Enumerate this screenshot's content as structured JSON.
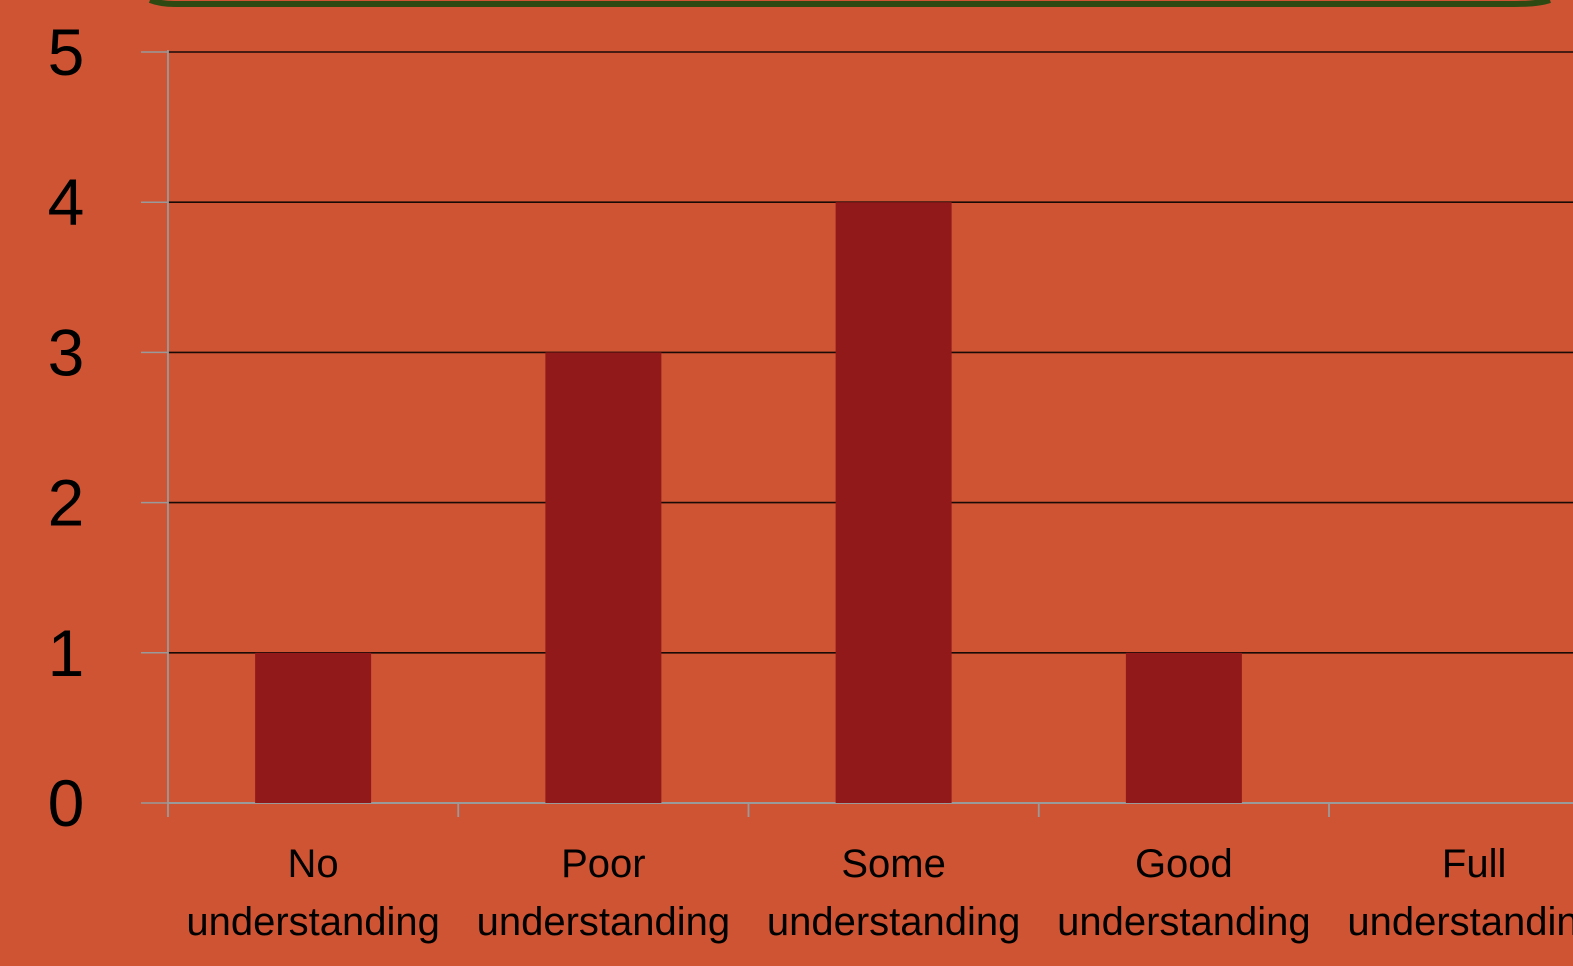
{
  "chart_data": {
    "type": "bar",
    "categories": [
      [
        "No",
        "understanding"
      ],
      [
        "Poor",
        "understanding"
      ],
      [
        "Some",
        "understanding"
      ],
      [
        "Good",
        "understanding"
      ],
      [
        "Full",
        "understanding"
      ]
    ],
    "values": [
      1,
      3,
      4,
      1,
      0
    ],
    "title": "",
    "xlabel": "",
    "ylabel": "",
    "ylim": [
      0,
      5
    ],
    "yticks": [
      "0",
      "1",
      "2",
      "3",
      "4",
      "5"
    ],
    "grid": true,
    "legend": "none"
  },
  "colors": {
    "background": "#CF5434",
    "bar": "#921919",
    "gridline": "#1a0a06",
    "axis": "#9a9a9a",
    "frame_top": "#2E4A12"
  }
}
